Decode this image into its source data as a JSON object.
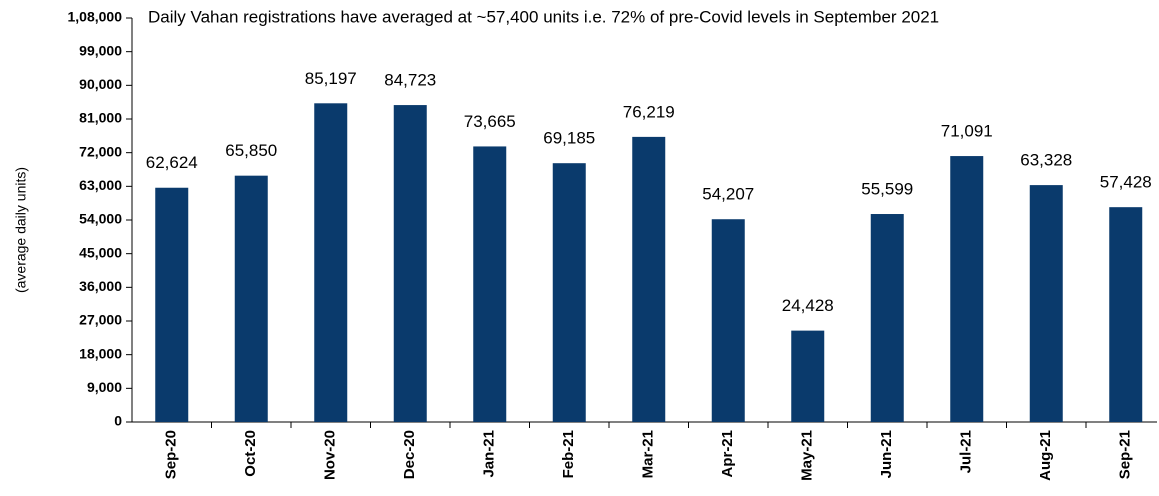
{
  "chart_data": {
    "type": "bar",
    "title": "Daily Vahan registrations have averaged at ~57,400 units i.e. 72% of pre-Covid levels in September 2021",
    "y_label": "(average daily units)",
    "categories": [
      "Sep-20",
      "Oct-20",
      "Nov-20",
      "Dec-20",
      "Jan-21",
      "Feb-21",
      "Mar-21",
      "Apr-21",
      "May-21",
      "Jun-21",
      "Jul-21",
      "Aug-21",
      "Sep-21"
    ],
    "values": [
      62624,
      65850,
      85197,
      84723,
      73665,
      69185,
      76219,
      54207,
      24428,
      55599,
      71091,
      63328,
      57428
    ],
    "value_labels": [
      "62,624",
      "65,850",
      "85,197",
      "84,723",
      "73,665",
      "69,185",
      "76,219",
      "54,207",
      "24,428",
      "55,599",
      "71,091",
      "63,328",
      "57,428"
    ],
    "color": "#0a3a6c",
    "ylim": [
      0,
      108000
    ],
    "yticks": [
      0,
      {
        "value": 9000,
        "label": "9,000"
      },
      {
        "value": 18000,
        "label": "18,000"
      },
      {
        "value": 27000,
        "label": "27,000"
      },
      {
        "value": 36000,
        "label": "36,000"
      },
      {
        "value": 45000,
        "label": "45,000"
      },
      {
        "value": 54000,
        "label": "54,000"
      },
      {
        "value": 63000,
        "label": "63,000"
      },
      {
        "value": 72000,
        "label": "72,000"
      },
      {
        "value": 81000,
        "label": "81,000"
      },
      {
        "value": 90000,
        "label": "90,000"
      },
      {
        "value": 99000,
        "label": "99,000"
      },
      {
        "value": 108000,
        "label": "1,08,000"
      }
    ],
    "grid": false
  }
}
